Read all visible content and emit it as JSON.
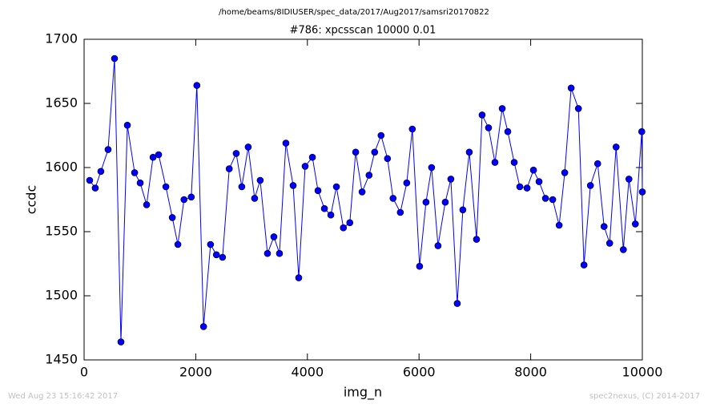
{
  "chart_data": {
    "type": "line",
    "suptitle": "/home/beams/8IDIUSER/spec_data/2017/Aug2017/samsri20170822",
    "title": "#786: xpcsscan 10000 0.01",
    "xlabel": "img_n",
    "ylabel": "ccdc",
    "timestamp": "Wed Aug 23 15:16:42 2017",
    "credit": "spec2nexus, (C) 2014-2017",
    "color": "#0000ff",
    "marker_edge": "#000000",
    "xlim": [
      0,
      10000
    ],
    "xticks": [
      0,
      2000,
      4000,
      6000,
      8000,
      10000
    ],
    "ylim": [
      1450,
      1700
    ],
    "yticks": [
      1450,
      1500,
      1550,
      1600,
      1650,
      1700
    ],
    "grid": false,
    "x": [
      100,
      200,
      300,
      430,
      545,
      660,
      775,
      905,
      1005,
      1120,
      1235,
      1335,
      1465,
      1580,
      1680,
      1790,
      1920,
      2020,
      2140,
      2265,
      2370,
      2480,
      2600,
      2725,
      2825,
      2940,
      3055,
      3155,
      3285,
      3400,
      3500,
      3615,
      3745,
      3845,
      3960,
      4090,
      4190,
      4305,
      4420,
      4520,
      4645,
      4760,
      4865,
      4980,
      5105,
      5205,
      5320,
      5435,
      5535,
      5665,
      5780,
      5880,
      6010,
      6125,
      6225,
      6340,
      6470,
      6570,
      6685,
      6785,
      6900,
      7030,
      7130,
      7245,
      7360,
      7490,
      7590,
      7705,
      7805,
      7935,
      8050,
      8150,
      8265,
      8395,
      8510,
      8610,
      8725,
      8855,
      8955,
      9070,
      9200,
      9315,
      9415,
      9530,
      9660,
      9760,
      9875,
      9990,
      10000
    ],
    "values": [
      1590,
      1584,
      1597,
      1614,
      1685,
      1464,
      1633,
      1596,
      1588,
      1571,
      1608,
      1610,
      1585,
      1561,
      1540,
      1575,
      1577,
      1664,
      1476,
      1540,
      1532,
      1530,
      1599,
      1611,
      1585,
      1616,
      1576,
      1590,
      1533,
      1546,
      1533,
      1619,
      1586,
      1514,
      1601,
      1608,
      1582,
      1568,
      1563,
      1585,
      1553,
      1557,
      1612,
      1581,
      1594,
      1612,
      1625,
      1607,
      1576,
      1565,
      1588,
      1630,
      1523,
      1573,
      1600,
      1539,
      1573,
      1591,
      1494,
      1567,
      1612,
      1544,
      1641,
      1631,
      1604,
      1646,
      1628,
      1604,
      1585,
      1584,
      1598,
      1589,
      1576,
      1575,
      1555,
      1596,
      1662,
      1646,
      1524,
      1586,
      1603,
      1554,
      1541,
      1616,
      1536,
      1591,
      1556,
      1628,
      1581
    ]
  }
}
